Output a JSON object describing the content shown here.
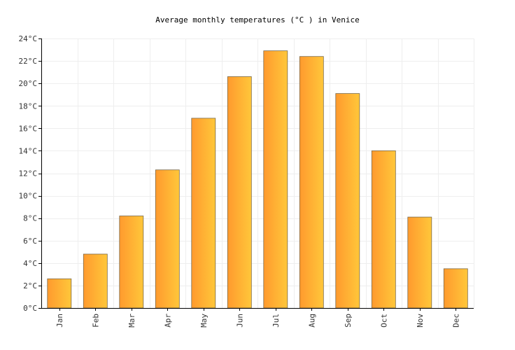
{
  "chart_data": {
    "type": "bar",
    "title": "Average monthly temperatures (°C ) in Venice",
    "categories": [
      "Jan",
      "Feb",
      "Mar",
      "Apr",
      "May",
      "Jun",
      "Jul",
      "Aug",
      "Sep",
      "Oct",
      "Nov",
      "Dec"
    ],
    "values": [
      2.6,
      4.8,
      8.2,
      12.3,
      16.9,
      20.6,
      22.9,
      22.4,
      19.1,
      14.0,
      8.1,
      3.5
    ],
    "ylim": [
      0,
      24
    ],
    "yticks": [
      0,
      2,
      4,
      6,
      8,
      10,
      12,
      14,
      16,
      18,
      20,
      22,
      24
    ],
    "ytick_labels": [
      "0°C",
      "2°C",
      "4°C",
      "6°C",
      "8°C",
      "10°C",
      "12°C",
      "14°C",
      "16°C",
      "18°C",
      "20°C",
      "22°C",
      "24°C"
    ],
    "xlabel": "",
    "ylabel": "",
    "grid": true,
    "bar_gradient": [
      "#ff9a2e",
      "#ffc73a"
    ]
  }
}
